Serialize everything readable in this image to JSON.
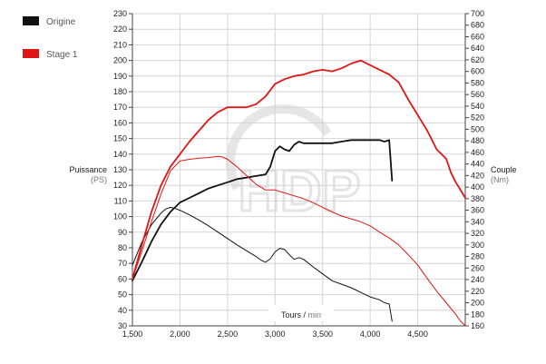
{
  "chart_data": {
    "type": "line",
    "title": "",
    "legend": [
      {
        "label": "Origine",
        "color": "#111111"
      },
      {
        "label": "Stage 1",
        "color": "#e01515"
      }
    ],
    "legend_placement": "top-left",
    "grid": true,
    "x_axis": {
      "label": "Tours",
      "unit": "min",
      "separator": " / ",
      "min": 1500,
      "max": 5000,
      "ticks": [
        1500,
        2000,
        2500,
        3000,
        3500,
        4000,
        4500
      ],
      "tick_labels": [
        "1,500",
        "2,000",
        "2,500",
        "3,000",
        "3,500",
        "4,000",
        "4,500"
      ]
    },
    "y_left": {
      "label": "Puissance",
      "unit": "(PS)",
      "min": 30,
      "max": 230,
      "ticks": [
        30,
        40,
        50,
        60,
        70,
        80,
        90,
        100,
        110,
        120,
        130,
        140,
        150,
        160,
        170,
        180,
        190,
        200,
        210,
        220,
        230
      ]
    },
    "y_right": {
      "label": "Couple",
      "unit": "(Nm)",
      "min": 160,
      "max": 700,
      "ticks": [
        160,
        180,
        200,
        220,
        240,
        260,
        280,
        300,
        320,
        340,
        360,
        380,
        400,
        420,
        440,
        460,
        480,
        500,
        520,
        540,
        560,
        580,
        600,
        620,
        640,
        660,
        680,
        700
      ]
    },
    "series": [
      {
        "name": "Origine",
        "axis": "left",
        "color": "#111111",
        "x": [
          1500,
          1600,
          1700,
          1800,
          1900,
          2000,
          2100,
          2200,
          2300,
          2400,
          2500,
          2600,
          2700,
          2800,
          2900,
          2950,
          3000,
          3050,
          3100,
          3150,
          3200,
          3250,
          3300,
          3400,
          3500,
          3600,
          3700,
          3800,
          3900,
          4000,
          4100,
          4150,
          4200,
          4230
        ],
        "y": [
          59,
          71,
          84,
          95,
          103,
          109,
          112,
          115,
          118,
          120,
          122,
          124,
          125,
          126,
          127,
          132,
          142,
          145,
          143,
          142,
          146,
          148,
          147,
          147,
          147,
          147,
          148,
          149,
          149,
          149,
          149,
          148,
          149,
          123
        ]
      },
      {
        "name": "Origine",
        "axis": "right",
        "color": "#111111",
        "x": [
          1500,
          1600,
          1700,
          1800,
          1850,
          1900,
          1950,
          2000,
          2100,
          2200,
          2300,
          2400,
          2500,
          2600,
          2700,
          2800,
          2850,
          2900,
          2950,
          3000,
          3050,
          3100,
          3150,
          3200,
          3250,
          3300,
          3400,
          3500,
          3600,
          3700,
          3800,
          3900,
          4000,
          4100,
          4150,
          4200,
          4230
        ],
        "y": [
          265,
          305,
          335,
          355,
          362,
          365,
          363,
          360,
          352,
          343,
          333,
          322,
          311,
          300,
          290,
          280,
          274,
          270,
          276,
          288,
          294,
          292,
          283,
          275,
          278,
          275,
          262,
          250,
          238,
          232,
          226,
          218,
          210,
          205,
          200,
          198,
          168
        ]
      },
      {
        "name": "Stage 1",
        "axis": "left",
        "color": "#e01515",
        "x": [
          1500,
          1600,
          1700,
          1800,
          1900,
          2000,
          2100,
          2200,
          2300,
          2400,
          2500,
          2600,
          2700,
          2800,
          2900,
          3000,
          3100,
          3200,
          3300,
          3400,
          3500,
          3600,
          3700,
          3800,
          3900,
          4000,
          4100,
          4200,
          4300,
          4400,
          4500,
          4600,
          4700,
          4800,
          4850,
          4900,
          4950,
          5000
        ],
        "y": [
          60,
          82,
          103,
          120,
          132,
          140,
          148,
          155,
          162,
          167,
          170,
          170,
          170,
          172,
          177,
          185,
          188,
          190,
          191,
          193,
          194,
          193,
          195,
          198,
          200,
          197,
          194,
          191,
          186,
          175,
          165,
          155,
          143,
          137,
          128,
          122,
          117,
          112
        ]
      },
      {
        "name": "Stage 1",
        "axis": "right",
        "color": "#e01515",
        "x": [
          1500,
          1600,
          1700,
          1800,
          1900,
          2000,
          2100,
          2200,
          2300,
          2400,
          2450,
          2500,
          2600,
          2700,
          2800,
          2900,
          3000,
          3100,
          3200,
          3300,
          3400,
          3500,
          3600,
          3700,
          3800,
          3900,
          4000,
          4100,
          4200,
          4300,
          4400,
          4500,
          4600,
          4700,
          4800,
          4900,
          4950,
          5000
        ],
        "y": [
          240,
          290,
          340,
          388,
          428,
          445,
          448,
          450,
          451,
          453,
          452,
          448,
          435,
          420,
          405,
          395,
          395,
          390,
          385,
          380,
          373,
          365,
          357,
          350,
          345,
          340,
          333,
          322,
          312,
          300,
          283,
          265,
          242,
          220,
          200,
          180,
          168,
          160
        ]
      }
    ],
    "annotations": [
      "HDP"
    ]
  }
}
